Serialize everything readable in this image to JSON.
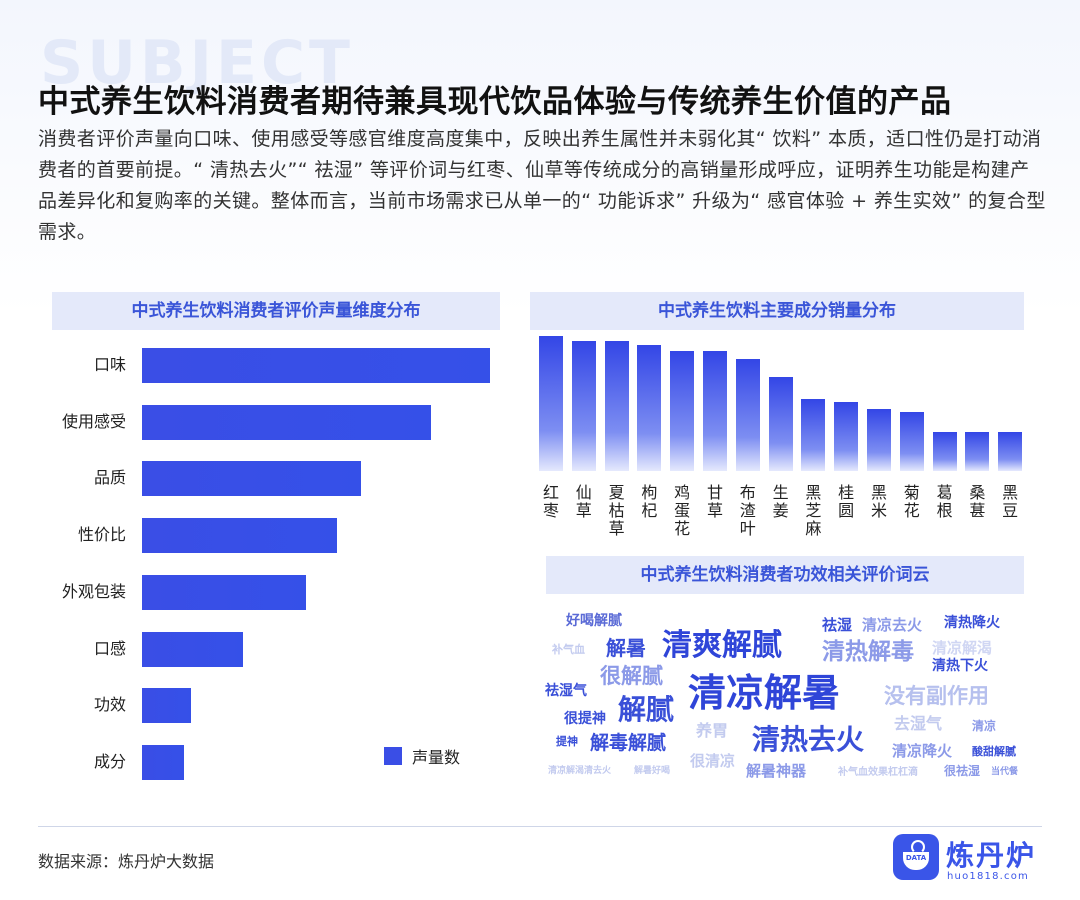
{
  "watermark": "SUBJECT",
  "title": "中式养生饮料消费者期待兼具现代饮品体验与传统养生价值的产品",
  "description": "消费者评价声量向口味、使用感受等感官维度高度集中，反映出养生属性并未弱化其“ 饮料” 本质，适口性仍是打动消费者的首要前提。“ 清热去火”“ 祛湿” 等评价词与红枣、仙草等传统成分的高销量形成呼应，证明养生功能是构建产品差异化和复购率的关键。整体而言，当前市场需求已从单一的“ 功能诉求” 升级为“ 感官体验 + 养生实效” 的复合型需求。",
  "chart_data": [
    {
      "type": "bar",
      "orientation": "horizontal",
      "title": "中式养生饮料消费者评价声量维度分布",
      "categories": [
        "口味",
        "使用感受",
        "品质",
        "性价比",
        "外观包装",
        "口感",
        "功效",
        "成分"
      ],
      "series": [
        {
          "name": "声量数",
          "values": [
            100,
            83,
            63,
            56,
            47,
            29,
            14,
            12
          ]
        }
      ],
      "legend": "bottom-right",
      "axis_labels_shown": false
    },
    {
      "type": "bar",
      "orientation": "vertical",
      "title": "中式养生饮料主要成分销量分布",
      "categories": [
        "红枣",
        "仙草",
        "夏枯草",
        "枸杞",
        "鸡蛋花",
        "甘草",
        "布渣叶",
        "生姜",
        "黑芝麻",
        "桂圆",
        "黑米",
        "菊花",
        "葛根",
        "桑葚",
        "黑豆"
      ],
      "values": [
        100,
        96,
        96,
        93,
        89,
        89,
        83,
        70,
        53,
        51,
        46,
        44,
        29,
        29,
        29
      ],
      "axis_labels_shown": false
    }
  ],
  "word_cloud": {
    "title": "中式养生饮料消费者功效相关评价词云",
    "words": [
      {
        "text": "好喝解腻",
        "size": 14,
        "color": "#5a6ad6"
      },
      {
        "text": "清爽解腻",
        "size": 30,
        "color": "#2f45d8"
      },
      {
        "text": "祛湿",
        "size": 15,
        "color": "#3a50d8"
      },
      {
        "text": "清凉去火",
        "size": 15,
        "color": "#8c9ae8"
      },
      {
        "text": "清热降火",
        "size": 14,
        "color": "#3a50d8"
      },
      {
        "text": "补气血",
        "size": 11,
        "color": "#c3cbef"
      },
      {
        "text": "解暑",
        "size": 20,
        "color": "#3a50d8"
      },
      {
        "text": "清热解毒",
        "size": 23,
        "color": "#8c9ae8"
      },
      {
        "text": "清凉解渴",
        "size": 15,
        "color": "#d0d6f3"
      },
      {
        "text": "清热下火",
        "size": 14,
        "color": "#3a50d8"
      },
      {
        "text": "祛湿气",
        "size": 14,
        "color": "#3a50d8"
      },
      {
        "text": "很解腻",
        "size": 21,
        "color": "#8c9ae8"
      },
      {
        "text": "清凉解暑",
        "size": 38,
        "color": "#2f45d8"
      },
      {
        "text": "没有副作用",
        "size": 21,
        "color": "#b6c0ee"
      },
      {
        "text": "很提神",
        "size": 14,
        "color": "#3a50d8"
      },
      {
        "text": "解腻",
        "size": 28,
        "color": "#3a50d8"
      },
      {
        "text": "养胃",
        "size": 16,
        "color": "#c3cbef"
      },
      {
        "text": "清热去火",
        "size": 28,
        "color": "#3a50d8"
      },
      {
        "text": "去湿气",
        "size": 16,
        "color": "#c3cbef"
      },
      {
        "text": "清凉",
        "size": 12,
        "color": "#8c9ae8"
      },
      {
        "text": "提神",
        "size": 11,
        "color": "#3a50d8"
      },
      {
        "text": "解毒解腻",
        "size": 19,
        "color": "#3a50d8"
      },
      {
        "text": "很清凉",
        "size": 15,
        "color": "#c3cbef"
      },
      {
        "text": "清凉降火",
        "size": 15,
        "color": "#8c9ae8"
      },
      {
        "text": "酸甜解腻",
        "size": 11,
        "color": "#3a50d8"
      },
      {
        "text": "清凉解渴清去火",
        "size": 9,
        "color": "#c3cbef"
      },
      {
        "text": "解暑好喝",
        "size": 9,
        "color": "#c3cbef"
      },
      {
        "text": "解暑神器",
        "size": 15,
        "color": "#8c9ae8"
      },
      {
        "text": "补气血效果杠杠滴",
        "size": 10,
        "color": "#c3cbef"
      },
      {
        "text": "很祛湿",
        "size": 12,
        "color": "#8c9ae8"
      },
      {
        "text": "当代餐",
        "size": 9,
        "color": "#8c9ae8"
      }
    ]
  },
  "footer": {
    "source": "数据来源：炼丹炉大数据",
    "logo_text": "炼丹炉",
    "logo_url": "huo1818.com",
    "logo_badge": "DATA"
  },
  "colors": {
    "bar": "#3a4ee6",
    "panel_bg": "#e4e9fa",
    "panel_text": "#3a55d8"
  }
}
